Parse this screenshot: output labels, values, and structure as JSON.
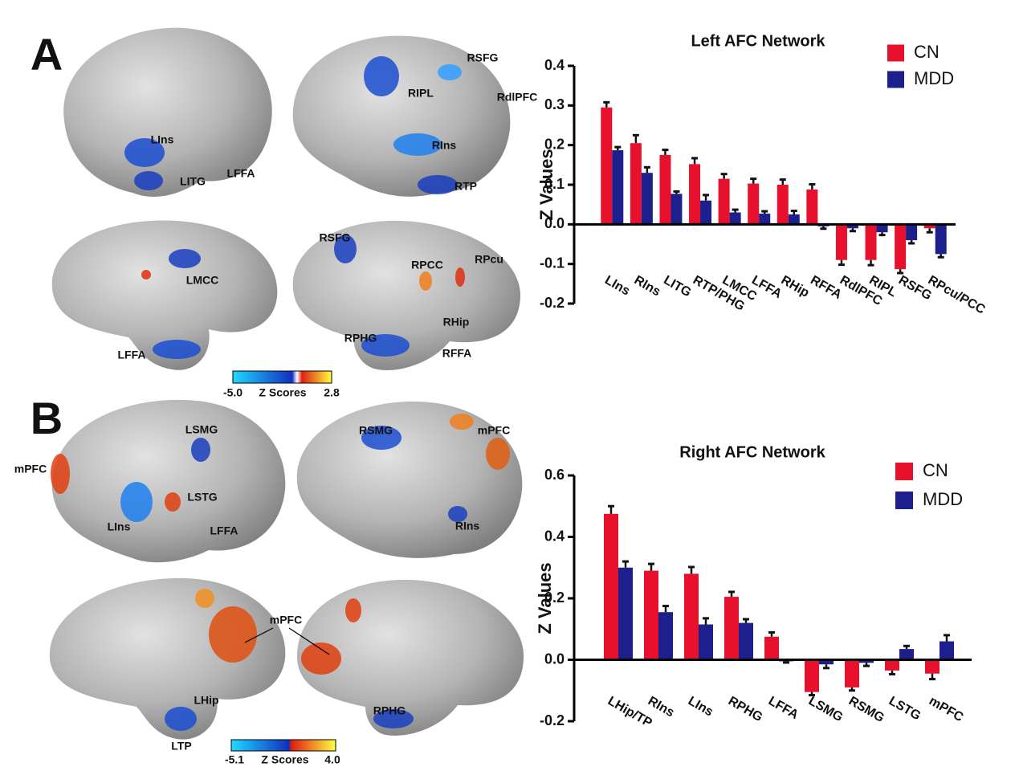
{
  "panels": [
    {
      "letter": "A",
      "labels": [
        "LIns",
        "LITG",
        "LFFA",
        "RSFG",
        "RIPL",
        "RdlPFC",
        "RIns",
        "RTP",
        "RSFG",
        "LMCC",
        "RPCC",
        "RPcu",
        "RHip",
        "RPHG",
        "LFFA",
        "RFFA"
      ],
      "colorbar": {
        "min": "-5.0",
        "title": "Z Scores",
        "max": "2.8"
      }
    },
    {
      "letter": "B",
      "labels": [
        "LSMG",
        "RSMG",
        "mPFC",
        "mPFC",
        "LSTG",
        "LIns",
        "LFFA",
        "RIns",
        "mPFC",
        "LHip",
        "RPHG",
        "LTP"
      ],
      "colorbar": {
        "min": "-5.1",
        "title": "Z Scores",
        "max": "4.0"
      }
    }
  ],
  "chart_data": [
    {
      "type": "bar",
      "title": "Left AFC Network",
      "y_label": "Z Values",
      "categories": [
        "LIns",
        "RIns",
        "LITG",
        "RTP/PHG",
        "LMCC",
        "LFFA",
        "RHip",
        "RFFA",
        "RdlPFC",
        "RIPL",
        "RSFG",
        "RPcu/PCC"
      ],
      "series": [
        {
          "name": "CN",
          "color": "#e8112d",
          "values": [
            0.295,
            0.205,
            0.175,
            0.152,
            0.115,
            0.103,
            0.1,
            0.088,
            -0.09,
            -0.09,
            -0.113,
            -0.01
          ],
          "errors": [
            0.013,
            0.02,
            0.013,
            0.015,
            0.012,
            0.012,
            0.013,
            0.013,
            0.012,
            0.013,
            0.01,
            0.01
          ]
        },
        {
          "name": "MDD",
          "color": "#1c1f8c",
          "values": [
            0.187,
            0.13,
            0.077,
            0.06,
            0.03,
            0.027,
            0.025,
            -0.005,
            -0.01,
            -0.02,
            -0.04,
            -0.075
          ],
          "errors": [
            0.008,
            0.014,
            0.006,
            0.014,
            0.007,
            0.006,
            0.009,
            0.006,
            0.007,
            0.007,
            0.008,
            0.008
          ]
        }
      ],
      "ylim": [
        -0.2,
        0.4
      ],
      "yticks": [
        -0.2,
        -0.1,
        {
          "value": 0,
          "label": "0.0"
        },
        0.1,
        0.2,
        0.3,
        0.4
      ],
      "legend": "upper right"
    },
    {
      "type": "bar",
      "title": "Right AFC Network",
      "y_label": "Z Values",
      "categories": [
        "LHip/TP",
        "RIns",
        "LIns",
        "RPHG",
        "LFFA",
        "LSMG",
        "RSMG",
        "LSTG",
        "mPFC"
      ],
      "series": [
        {
          "name": "CN",
          "color": "#e8112d",
          "values": [
            0.475,
            0.29,
            0.28,
            0.205,
            0.075,
            -0.105,
            -0.09,
            -0.035,
            -0.045
          ],
          "errors": [
            0.025,
            0.022,
            0.022,
            0.016,
            0.014,
            0.01,
            0.01,
            0.012,
            0.018
          ]
        },
        {
          "name": "MDD",
          "color": "#1c1f8c",
          "values": [
            0.3,
            0.155,
            0.115,
            0.12,
            -0.005,
            -0.015,
            -0.01,
            0.035,
            0.06
          ],
          "errors": [
            0.02,
            0.02,
            0.02,
            0.012,
            0.004,
            0.012,
            0.01,
            0.01,
            0.02
          ]
        }
      ],
      "ylim": [
        -0.2,
        0.6
      ],
      "yticks": [
        -0.2,
        {
          "value": 0,
          "label": "0.0"
        },
        0.2,
        0.4,
        0.6
      ],
      "legend": "upper right"
    }
  ]
}
